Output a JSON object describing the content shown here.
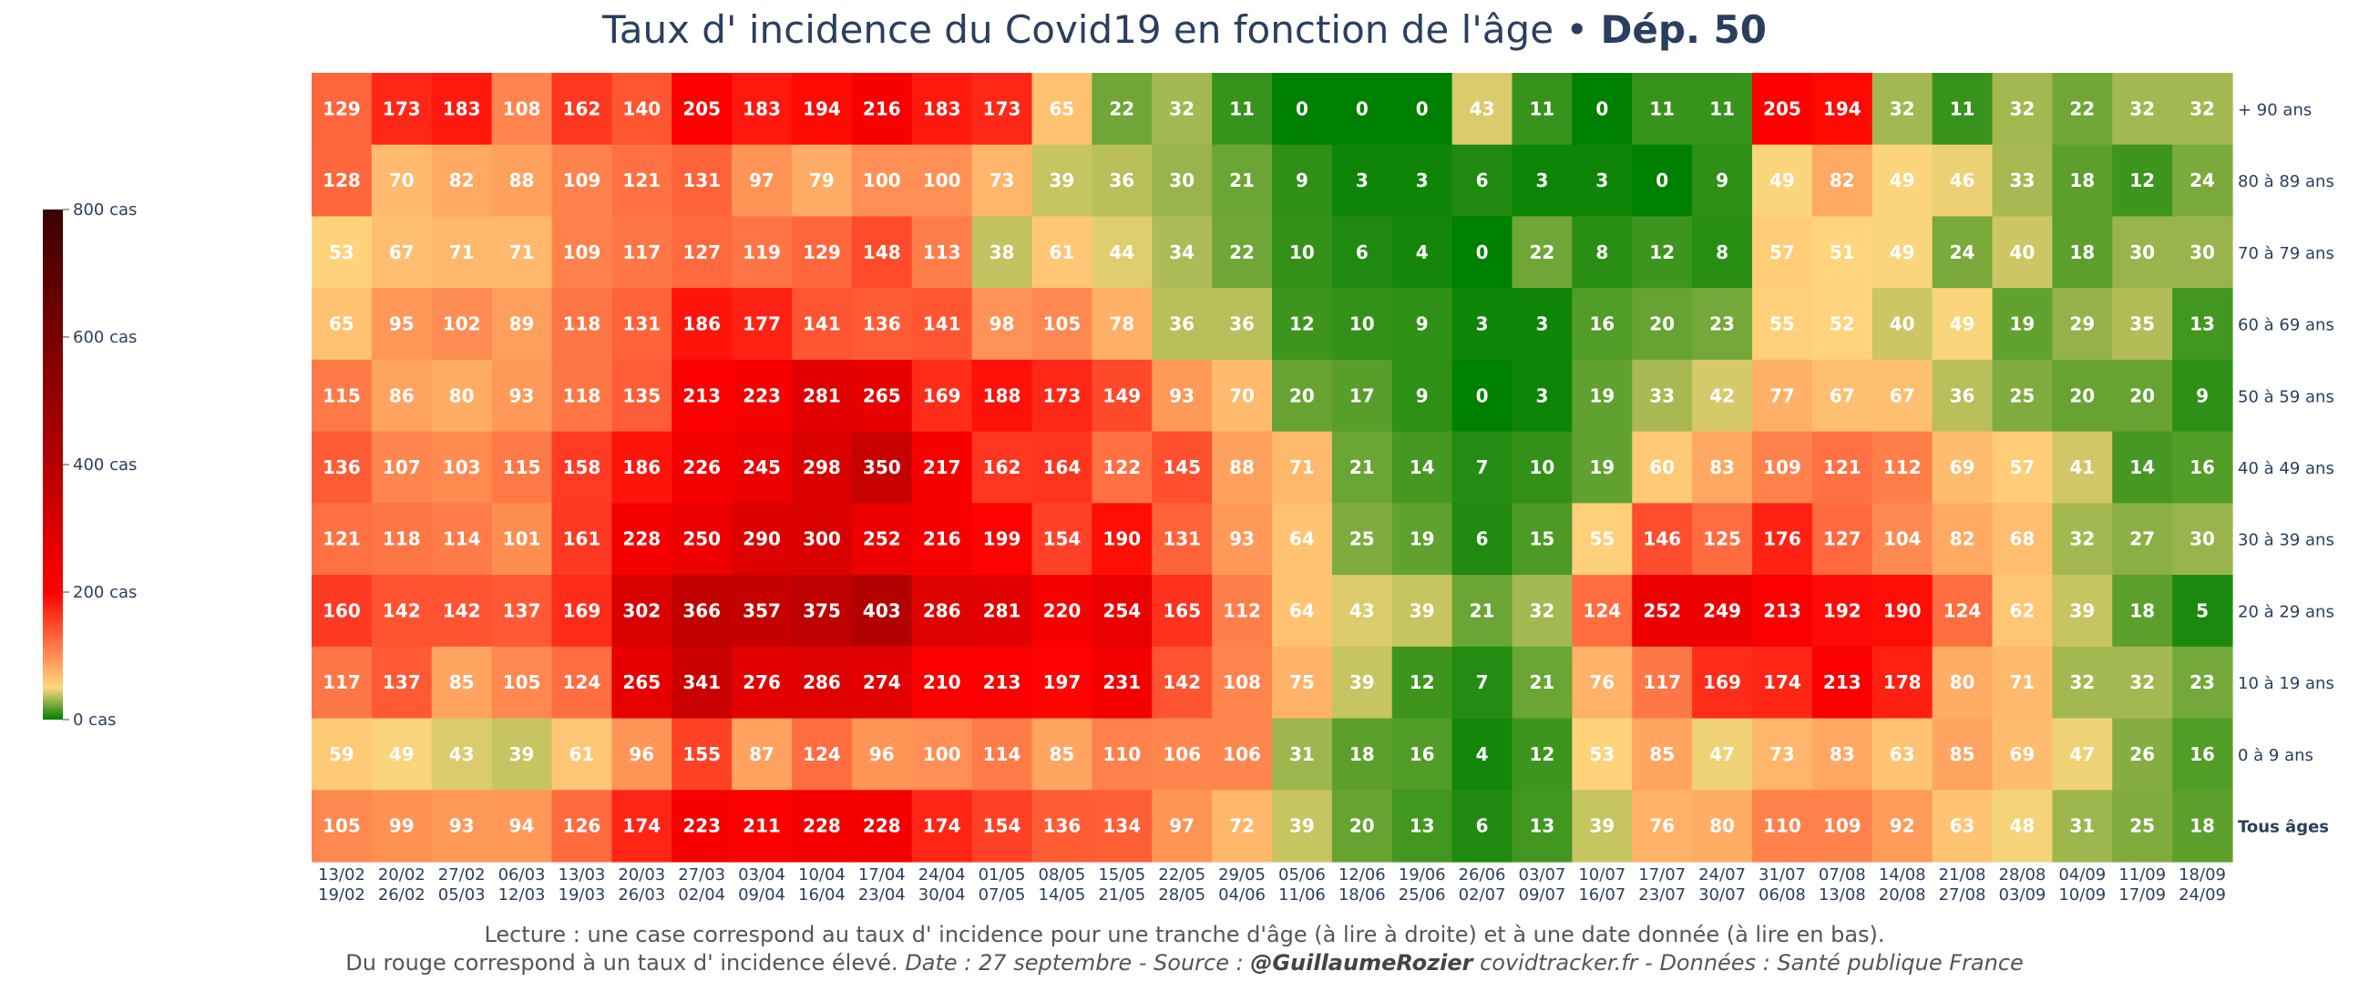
{
  "title": {
    "main": "Taux d' incidence du Covid19 en fonction de l'âge",
    "sep": " • ",
    "dept": "Dép. 50"
  },
  "footer": {
    "line1": "Lecture : une case correspond au taux d' incidence pour une tranche d'âge (à lire à droite) et à une date donnée (à lire en bas).",
    "line2_plain": "Du rouge correspond à un taux d' incidence élevé.  ",
    "line2_italic1": "Date : 27 septembre - Source : ",
    "line2_author": "@GuillaumeRozier",
    "line2_italic2": " covidtracker.fr - Données : Santé publique France"
  },
  "colors": {
    "text_dark": "#2a3f5f",
    "cell_text": "#ffffff"
  },
  "chart_data": {
    "type": "heatmap",
    "title": "Taux d' incidence du Covid19 en fonction de l'âge • Dép. 50",
    "x_start": [
      "13/02",
      "20/02",
      "27/02",
      "06/03",
      "13/03",
      "20/03",
      "27/03",
      "03/04",
      "10/04",
      "17/04",
      "24/04",
      "01/05",
      "08/05",
      "15/05",
      "22/05",
      "29/05",
      "05/06",
      "12/06",
      "19/06",
      "26/06",
      "03/07",
      "10/07",
      "17/07",
      "24/07",
      "31/07",
      "07/08",
      "14/08",
      "21/08",
      "28/08",
      "04/09",
      "11/09",
      "18/09"
    ],
    "x_end": [
      "19/02",
      "26/02",
      "05/03",
      "12/03",
      "19/03",
      "26/03",
      "02/04",
      "09/04",
      "16/04",
      "23/04",
      "30/04",
      "07/05",
      "14/05",
      "21/05",
      "28/05",
      "04/06",
      "11/06",
      "18/06",
      "25/06",
      "02/07",
      "09/07",
      "16/07",
      "23/07",
      "30/07",
      "06/08",
      "13/08",
      "20/08",
      "27/08",
      "03/09",
      "10/09",
      "17/09",
      "24/09"
    ],
    "y": [
      "+ 90 ans",
      "80 à 89 ans",
      "70 à 79 ans",
      "60 à 69 ans",
      "50 à 59 ans",
      "40 à 49 ans",
      "30 à 39 ans",
      "20 à 29 ans",
      "10 à 19 ans",
      "0 à 9 ans",
      "Tous âges"
    ],
    "values": [
      [
        129,
        173,
        183,
        108,
        162,
        140,
        205,
        183,
        194,
        216,
        183,
        173,
        65,
        22,
        32,
        11,
        0,
        0,
        0,
        43,
        11,
        0,
        11,
        11,
        205,
        194,
        32,
        11,
        32,
        22,
        32,
        32
      ],
      [
        128,
        70,
        82,
        88,
        109,
        121,
        131,
        97,
        79,
        100,
        100,
        73,
        39,
        36,
        30,
        21,
        9,
        3,
        3,
        6,
        3,
        3,
        0,
        9,
        49,
        82,
        49,
        46,
        33,
        18,
        12,
        24
      ],
      [
        53,
        67,
        71,
        71,
        109,
        117,
        127,
        119,
        129,
        148,
        113,
        38,
        61,
        44,
        34,
        22,
        10,
        6,
        4,
        0,
        22,
        8,
        12,
        8,
        57,
        51,
        49,
        24,
        40,
        18,
        30,
        30
      ],
      [
        65,
        95,
        102,
        89,
        118,
        131,
        186,
        177,
        141,
        136,
        141,
        98,
        105,
        78,
        36,
        36,
        12,
        10,
        9,
        3,
        3,
        16,
        20,
        23,
        55,
        52,
        40,
        49,
        19,
        29,
        35,
        13
      ],
      [
        115,
        86,
        80,
        93,
        118,
        135,
        213,
        223,
        281,
        265,
        169,
        188,
        173,
        149,
        93,
        70,
        20,
        17,
        9,
        0,
        3,
        19,
        33,
        42,
        77,
        67,
        67,
        36,
        25,
        20,
        20,
        9
      ],
      [
        136,
        107,
        103,
        115,
        158,
        186,
        226,
        245,
        298,
        350,
        217,
        162,
        164,
        122,
        145,
        88,
        71,
        21,
        14,
        7,
        10,
        19,
        60,
        83,
        109,
        121,
        112,
        69,
        57,
        41,
        14,
        16
      ],
      [
        121,
        118,
        114,
        101,
        161,
        228,
        250,
        290,
        300,
        252,
        216,
        199,
        154,
        190,
        131,
        93,
        64,
        25,
        19,
        6,
        15,
        55,
        146,
        125,
        176,
        127,
        104,
        82,
        68,
        32,
        27,
        30
      ],
      [
        160,
        142,
        142,
        137,
        169,
        302,
        366,
        357,
        375,
        403,
        286,
        281,
        220,
        254,
        165,
        112,
        64,
        43,
        39,
        21,
        32,
        124,
        252,
        249,
        213,
        192,
        190,
        124,
        62,
        39,
        18,
        5
      ],
      [
        117,
        137,
        85,
        105,
        124,
        265,
        341,
        276,
        286,
        274,
        210,
        213,
        197,
        231,
        142,
        108,
        75,
        39,
        12,
        7,
        21,
        76,
        117,
        169,
        174,
        213,
        178,
        80,
        71,
        32,
        32,
        23
      ],
      [
        59,
        49,
        43,
        39,
        61,
        96,
        155,
        87,
        124,
        96,
        100,
        114,
        85,
        110,
        106,
        106,
        31,
        18,
        16,
        4,
        12,
        53,
        85,
        47,
        73,
        83,
        63,
        85,
        69,
        47,
        26,
        16
      ],
      [
        105,
        99,
        93,
        94,
        126,
        174,
        223,
        211,
        228,
        228,
        174,
        154,
        136,
        134,
        97,
        72,
        39,
        20,
        13,
        6,
        13,
        39,
        76,
        80,
        110,
        109,
        92,
        63,
        48,
        31,
        25,
        18
      ]
    ],
    "colorbar": {
      "min": 0,
      "max": 800,
      "ticks": [
        0,
        200,
        400,
        600,
        800
      ],
      "tick_labels": [
        "0 cas",
        "200 cas",
        "400 cas",
        "600 cas",
        "800 cas"
      ]
    }
  }
}
